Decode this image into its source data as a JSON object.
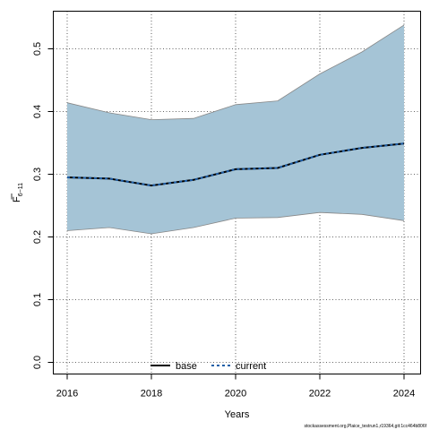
{
  "chart_data": {
    "type": "area",
    "title": "",
    "xlabel": "Years",
    "ylabel_main": "F",
    "ylabel_sub": "6−11",
    "xlim": [
      2016,
      2024
    ],
    "ylim": [
      0,
      0.55
    ],
    "x_ticks": [
      2016,
      2018,
      2020,
      2022,
      2024
    ],
    "y_ticks": [
      0.0,
      0.1,
      0.2,
      0.3,
      0.4,
      0.5
    ],
    "y_tick_labels": [
      "0.0",
      "0.1",
      "0.2",
      "0.3",
      "0.4",
      "0.5"
    ],
    "grid": true,
    "legend_position": "bottom-center",
    "x": [
      2016,
      2017,
      2018,
      2019,
      2020,
      2021,
      2022,
      2023,
      2024
    ],
    "band": {
      "upper": [
        0.414,
        0.398,
        0.387,
        0.389,
        0.411,
        0.417,
        0.46,
        0.495,
        0.538
      ],
      "lower": [
        0.21,
        0.215,
        0.205,
        0.215,
        0.23,
        0.231,
        0.239,
        0.236,
        0.226
      ],
      "fill": "#a5c4d6",
      "stroke": "#888888"
    },
    "series": [
      {
        "name": "base",
        "style": "solid",
        "color": "#000000",
        "values": [
          0.295,
          0.293,
          0.282,
          0.291,
          0.308,
          0.31,
          0.331,
          0.342,
          0.349
        ]
      },
      {
        "name": "current",
        "style": "dashed",
        "color": "#1f5fa8",
        "values": [
          0.295,
          0.293,
          0.282,
          0.291,
          0.308,
          0.31,
          0.331,
          0.342,
          0.349
        ]
      }
    ]
  },
  "footer": "stockassessment.org,Plaice_testrun1,r19364,git:1cc464b806f"
}
